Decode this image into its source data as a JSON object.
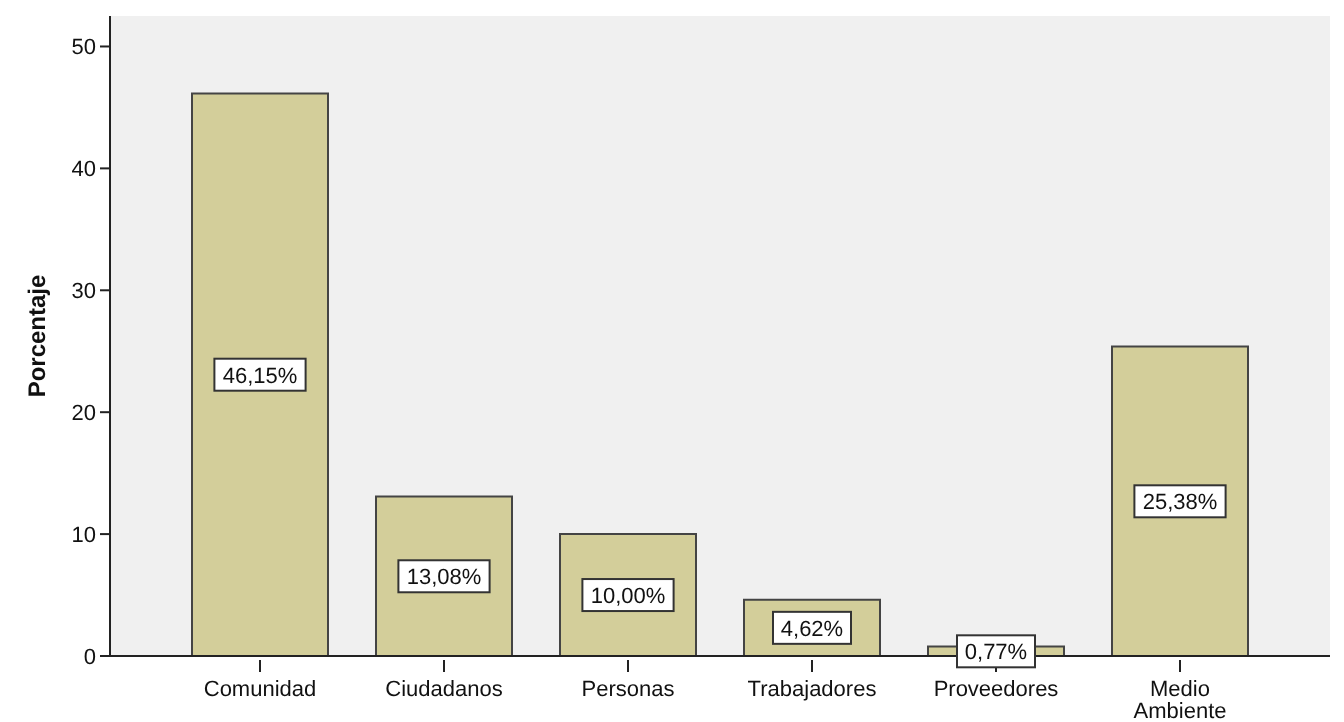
{
  "chart_data": {
    "type": "bar",
    "ylabel": "Porcentaje",
    "categories": [
      "Comunidad",
      "Ciudadanos",
      "Personas",
      "Trabajadores",
      "Proveedores",
      "Medio Ambiente"
    ],
    "values": [
      46.15,
      13.08,
      10.0,
      4.62,
      0.77,
      25.38
    ],
    "value_labels": [
      "46,15%",
      "13,08%",
      "10,00%",
      "4,62%",
      "0,77%",
      "25,38%"
    ],
    "color": "#d3ce9a",
    "ylim": [
      0,
      52.5
    ],
    "yticks": [
      0,
      10,
      20,
      30,
      40,
      50
    ],
    "grid": false
  }
}
